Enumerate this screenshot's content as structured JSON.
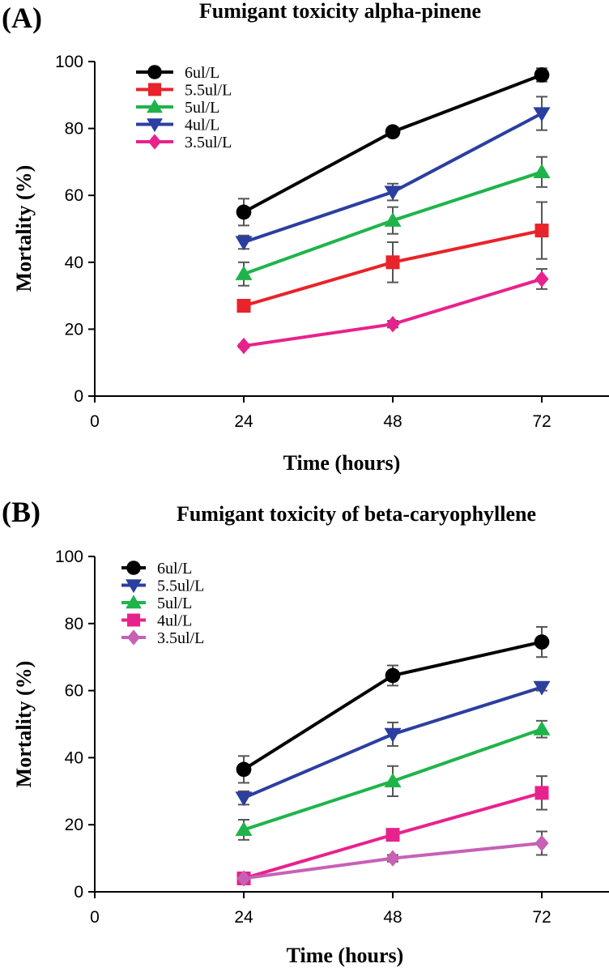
{
  "chart_data": [
    {
      "type": "line",
      "panel_label": "(A)",
      "title": "Fumigant toxicity alpha-pinene",
      "xlabel": "Time (hours)",
      "ylabel": "Mortality (%)",
      "xlim": [
        0,
        84
      ],
      "ylim": [
        0,
        100
      ],
      "xticks": [
        0,
        24,
        48,
        72
      ],
      "yticks": [
        0,
        20,
        40,
        60,
        80,
        100
      ],
      "x": [
        24,
        48,
        72
      ],
      "legend_position": "top-left",
      "series": [
        {
          "name": "6ul/L",
          "color": "#000000",
          "marker": "circle",
          "values": [
            55,
            79,
            96
          ],
          "errors": [
            4,
            1,
            2
          ]
        },
        {
          "name": "5.5ul/L",
          "color": "#e8232a",
          "marker": "square",
          "values": [
            27,
            40,
            49.5
          ],
          "errors": [
            1,
            6,
            8.5
          ]
        },
        {
          "name": "5ul/L",
          "color": "#1fb44a",
          "marker": "triangle-up",
          "values": [
            36.5,
            52.5,
            67
          ],
          "errors": [
            3.5,
            4,
            4.5
          ]
        },
        {
          "name": "4ul/L",
          "color": "#2b3fa0",
          "marker": "triangle-down",
          "values": [
            46,
            61,
            84.5
          ],
          "errors": [
            2,
            2.5,
            5
          ]
        },
        {
          "name": "3.5ul/L",
          "color": "#e8228c",
          "marker": "diamond",
          "values": [
            15,
            21.5,
            35
          ],
          "errors": [
            0.5,
            1,
            3
          ]
        }
      ]
    },
    {
      "type": "line",
      "panel_label": "(B)",
      "title": "Fumigant toxicity of beta-caryophyllene",
      "xlabel": "Time (hours)",
      "ylabel": "Mortality (%)",
      "xlim": [
        0,
        84
      ],
      "ylim": [
        0,
        100
      ],
      "xticks": [
        0,
        24,
        48,
        72
      ],
      "yticks": [
        0,
        20,
        40,
        60,
        80,
        100
      ],
      "x": [
        24,
        48,
        72
      ],
      "legend_position": "top-left",
      "series": [
        {
          "name": "6ul/L",
          "color": "#000000",
          "marker": "circle",
          "values": [
            36.5,
            64.5,
            74.5
          ],
          "errors": [
            4,
            3,
            4.5
          ]
        },
        {
          "name": "5.5ul/L",
          "color": "#2b3fa0",
          "marker": "triangle-down",
          "values": [
            28,
            47,
            61
          ],
          "errors": [
            2,
            3.5,
            1
          ]
        },
        {
          "name": "5ul/L",
          "color": "#1fb44a",
          "marker": "triangle-up",
          "values": [
            18.5,
            33,
            48.5
          ],
          "errors": [
            3,
            4.5,
            2.5
          ]
        },
        {
          "name": "4ul/L",
          "color": "#e8228c",
          "marker": "square",
          "values": [
            4,
            17,
            29.5
          ],
          "errors": [
            0.5,
            1,
            5
          ]
        },
        {
          "name": "3.5ul/L",
          "color": "#c661b5",
          "marker": "diamond",
          "values": [
            4,
            10,
            14.5
          ],
          "errors": [
            0.5,
            1,
            3.5
          ]
        }
      ]
    }
  ]
}
